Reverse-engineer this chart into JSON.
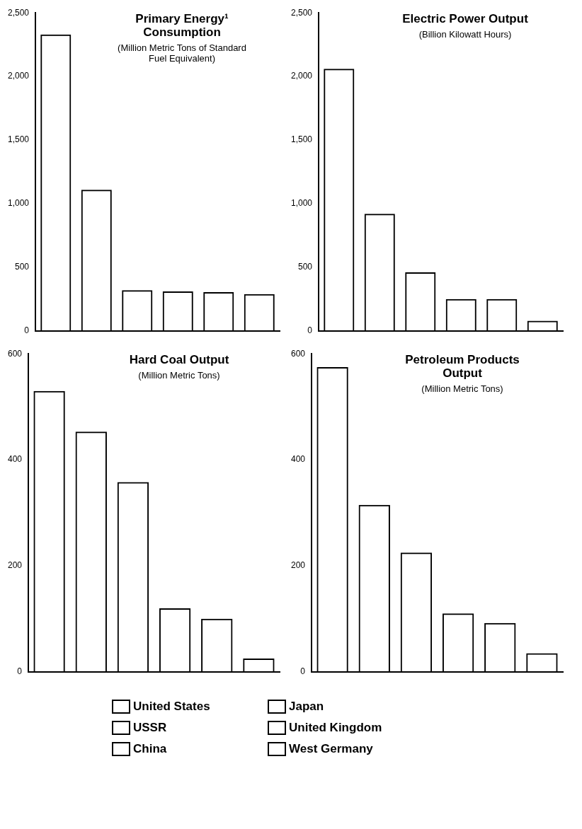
{
  "chart_data": [
    {
      "type": "bar",
      "title": "Primary Energy¹ Consumption",
      "subtitle": "(Million Metric Tons of Standard Fuel Equivalent)",
      "categories": [
        null,
        null,
        null,
        null,
        null,
        null
      ],
      "legend": "bottom",
      "series": [
        {
          "name": "United States",
          "color": "#000000",
          "values": [
            2330,
            null,
            null,
            null,
            null,
            null
          ]
        },
        {
          "name": "USSR",
          "color": "#000000",
          "values": [
            null,
            1110,
            null,
            null,
            null,
            null
          ]
        },
        {
          "name": "China",
          "color": "#000000",
          "values": [
            null,
            null,
            320,
            null,
            null,
            null
          ]
        },
        {
          "name": "Japan",
          "color": "#000000",
          "values": [
            null,
            null,
            null,
            310,
            null,
            null
          ]
        },
        {
          "name": "United Kingdom",
          "color": "#000000",
          "values": [
            null,
            null,
            null,
            null,
            305,
            null
          ]
        },
        {
          "name": "West Germany",
          "color": "#000000",
          "values": [
            null,
            null,
            null,
            null,
            null,
            290
          ]
        }
      ],
      "ylim": [
        0,
        2500
      ],
      "yticks": [
        0,
        500,
        {
          "value": 1000,
          "label": "1,000"
        },
        {
          "value": 1500,
          "label": "1,500"
        },
        {
          "value": 2000,
          "label": "2,000"
        },
        {
          "value": 2500,
          "label": "2,500"
        }
      ],
      "tick_labels": "y"
    },
    {
      "type": "bar",
      "title": "Electric Power Output",
      "subtitle": "(Billion Kilowatt Hours)",
      "categories": [
        null,
        null,
        null,
        null,
        null,
        null
      ],
      "values": [
        2060,
        920,
        460,
        250,
        250,
        80
      ],
      "color": "#000000",
      "ylim": [
        0,
        2500
      ],
      "yticks": [
        0,
        500,
        {
          "value": 1000,
          "label": "1,000"
        },
        {
          "value": 1500,
          "label": "1,500"
        },
        {
          "value": 2000,
          "label": "2,000"
        },
        {
          "value": 2500,
          "label": "2,500"
        }
      ],
      "tick_labels": "y"
    },
    {
      "type": "bar",
      "title": "Hard Coal Output",
      "subtitle": "(Million Metric Tons)",
      "categories": [
        null,
        null,
        null,
        null,
        null,
        null
      ],
      "values": [
        530,
        453,
        358,
        120,
        100,
        25
      ],
      "color": "#000000",
      "ylim": [
        0,
        600
      ],
      "yticks": [
        0,
        200,
        400,
        600
      ],
      "tick_labels": "y"
    },
    {
      "type": "bar",
      "title": "Petroleum Products Output",
      "subtitle": "(Million Metric Tons)",
      "categories": [
        null,
        null,
        null,
        null,
        null,
        null
      ],
      "values": [
        575,
        315,
        225,
        110,
        92,
        35
      ],
      "color": "#000000",
      "ylim": [
        0,
        600
      ],
      "yticks": [
        0,
        200,
        400,
        600
      ],
      "tick_labels": "y"
    }
  ]
}
